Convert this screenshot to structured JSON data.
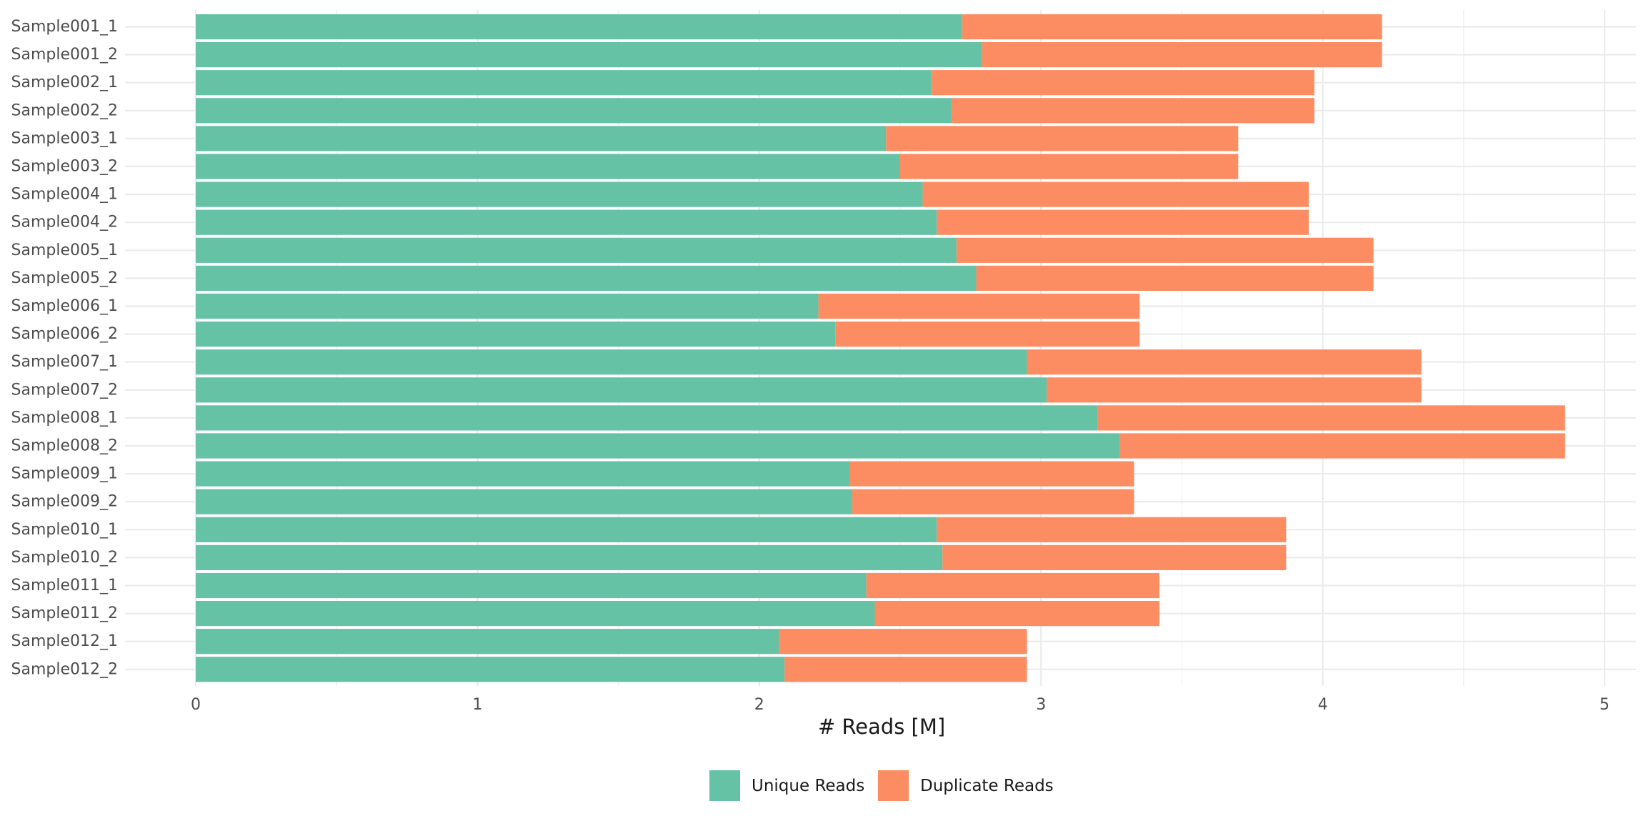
{
  "chart_data": {
    "type": "bar",
    "orientation": "horizontal",
    "stacked": true,
    "title": "",
    "xlabel": "# Reads [M]",
    "ylabel": "",
    "xlim": [
      0,
      5
    ],
    "xticks": [
      0,
      1,
      2,
      3,
      4,
      5
    ],
    "grid": true,
    "legend_position": "bottom",
    "categories": [
      "Sample001_1",
      "Sample001_2",
      "Sample002_1",
      "Sample002_2",
      "Sample003_1",
      "Sample003_2",
      "Sample004_1",
      "Sample004_2",
      "Sample005_1",
      "Sample005_2",
      "Sample006_1",
      "Sample006_2",
      "Sample007_1",
      "Sample007_2",
      "Sample008_1",
      "Sample008_2",
      "Sample009_1",
      "Sample009_2",
      "Sample010_1",
      "Sample010_2",
      "Sample011_1",
      "Sample011_2",
      "Sample012_1",
      "Sample012_2"
    ],
    "series": [
      {
        "name": "Unique Reads",
        "color": "#66c2a5",
        "values": [
          2.72,
          2.79,
          2.61,
          2.68,
          2.45,
          2.5,
          2.58,
          2.63,
          2.7,
          2.77,
          2.21,
          2.27,
          2.95,
          3.02,
          3.2,
          3.28,
          2.32,
          2.33,
          2.63,
          2.65,
          2.38,
          2.41,
          2.07,
          2.09
        ]
      },
      {
        "name": "Duplicate Reads",
        "color": "#fc8d62",
        "values": [
          1.49,
          1.42,
          1.36,
          1.29,
          1.25,
          1.2,
          1.37,
          1.32,
          1.48,
          1.41,
          1.14,
          1.08,
          1.4,
          1.33,
          1.66,
          1.58,
          1.01,
          1.0,
          1.24,
          1.22,
          1.04,
          1.01,
          0.88,
          0.86
        ]
      }
    ]
  }
}
